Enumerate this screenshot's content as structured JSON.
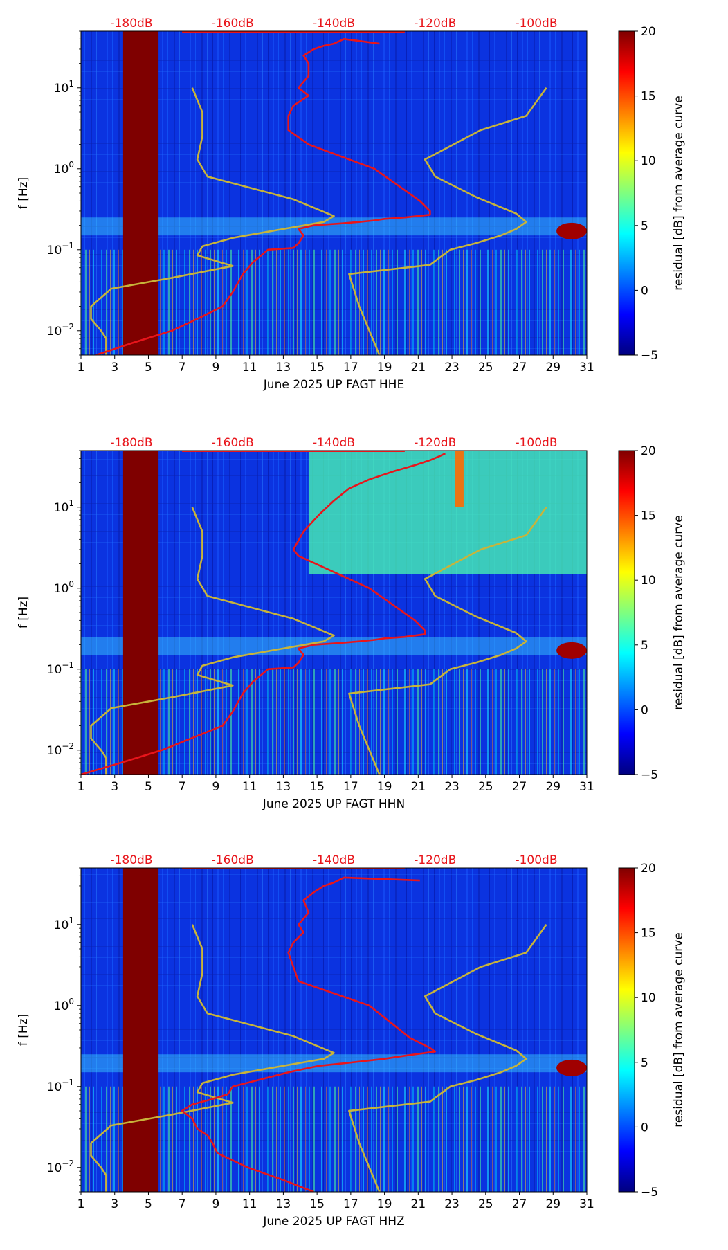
{
  "colormap_stops": [
    "#00007f",
    "#0000ff",
    "#007fff",
    "#00ffff",
    "#7fff7f",
    "#ffff00",
    "#ff7f00",
    "#ff0000",
    "#7f0000"
  ],
  "overlay_colors": {
    "psd_curve": "#e8151b",
    "noise_model": "#c8b43a",
    "top_label": "#e8151b",
    "gap": "#7f0000"
  },
  "chart_data": [
    {
      "type": "heatmap",
      "title": "",
      "xlabel": "June 2025 UP FAGT  HHE",
      "ylabel": "f [Hz]",
      "xlim": [
        1,
        31
      ],
      "ylim": [
        0.005,
        50
      ],
      "yscale": "log",
      "x_ticks": [
        "1",
        "3",
        "5",
        "7",
        "9",
        "11",
        "13",
        "15",
        "17",
        "19",
        "21",
        "23",
        "25",
        "27",
        "29",
        "31"
      ],
      "y_ticks": [
        {
          "label": "10",
          "exp": "−2"
        },
        {
          "label": "10",
          "exp": "−1"
        },
        {
          "label": "10",
          "exp": "0"
        },
        {
          "label": "10",
          "exp": "1"
        }
      ],
      "top_ticks": [
        "-180dB",
        "-160dB",
        "-140dB",
        "-120dB",
        "-100dB"
      ],
      "colorbar": {
        "label": "residual [dB] from average curve",
        "range": [
          -5,
          20
        ],
        "ticks": [
          "−5",
          "0",
          "5",
          "10",
          "15",
          "20"
        ]
      },
      "data_gap_days": [
        3.5,
        5.6
      ],
      "psd_curve": {
        "db": [
          -187,
          -180,
          -172,
          -166,
          -162,
          -160,
          -158,
          -156,
          -153,
          -148,
          -147,
          -146,
          -147,
          -144,
          -139,
          -135,
          -132,
          -130,
          -126,
          -121,
          -121,
          -123,
          -132,
          -145,
          -149,
          -149,
          -148,
          -145,
          -147,
          -145,
          -145,
          -146,
          -144,
          -142,
          -140,
          -138,
          -131
        ],
        "freq": [
          0.005,
          0.007,
          0.01,
          0.015,
          0.02,
          0.03,
          0.05,
          0.07,
          0.1,
          0.105,
          0.12,
          0.15,
          0.18,
          0.2,
          0.21,
          0.22,
          0.23,
          0.24,
          0.25,
          0.27,
          0.3,
          0.4,
          1,
          2,
          3,
          4.5,
          6,
          8,
          10,
          14,
          20,
          25,
          30,
          33,
          35,
          40,
          35
        ]
      }
    },
    {
      "type": "heatmap",
      "title": "",
      "xlabel": "June 2025 UP FAGT  HHN",
      "ylabel": "f [Hz]",
      "xlim": [
        1,
        31
      ],
      "ylim": [
        0.005,
        50
      ],
      "yscale": "log",
      "x_ticks": [
        "1",
        "3",
        "5",
        "7",
        "9",
        "11",
        "13",
        "15",
        "17",
        "19",
        "21",
        "23",
        "25",
        "27",
        "29",
        "31"
      ],
      "y_ticks": [
        {
          "label": "10",
          "exp": "−2"
        },
        {
          "label": "10",
          "exp": "−1"
        },
        {
          "label": "10",
          "exp": "0"
        },
        {
          "label": "10",
          "exp": "1"
        }
      ],
      "top_ticks": [
        "-180dB",
        "-160dB",
        "-140dB",
        "-120dB",
        "-100dB"
      ],
      "colorbar": {
        "label": "residual [dB] from average curve",
        "range": [
          -5,
          20
        ],
        "ticks": [
          "−5",
          "0",
          "5",
          "10",
          "15",
          "20"
        ]
      },
      "data_gap_days": [
        3.5,
        5.6
      ],
      "psd_curve": {
        "db": [
          -190,
          -182,
          -174,
          -167,
          -162,
          -160,
          -158,
          -156,
          -153,
          -148,
          -147,
          -146,
          -147,
          -144,
          -139,
          -135,
          -132,
          -130,
          -126,
          -122,
          -122,
          -124,
          -133,
          -147,
          -148,
          -146,
          -143,
          -140,
          -137,
          -133,
          -128,
          -124,
          -121,
          -119,
          -118
        ],
        "freq": [
          0.005,
          0.007,
          0.01,
          0.015,
          0.02,
          0.03,
          0.05,
          0.07,
          0.1,
          0.105,
          0.12,
          0.15,
          0.18,
          0.2,
          0.21,
          0.22,
          0.23,
          0.24,
          0.25,
          0.27,
          0.3,
          0.4,
          1,
          2.5,
          3,
          5,
          8,
          12,
          17,
          22,
          28,
          33,
          38,
          43,
          46
        ]
      }
    },
    {
      "type": "heatmap",
      "title": "",
      "xlabel": "June 2025 UP FAGT  HHZ",
      "ylabel": "f [Hz]",
      "xlim": [
        1,
        31
      ],
      "ylim": [
        0.005,
        50
      ],
      "yscale": "log",
      "x_ticks": [
        "1",
        "3",
        "5",
        "7",
        "9",
        "11",
        "13",
        "15",
        "17",
        "19",
        "21",
        "23",
        "25",
        "27",
        "29",
        "31"
      ],
      "y_ticks": [
        {
          "label": "10",
          "exp": "−2"
        },
        {
          "label": "10",
          "exp": "−1"
        },
        {
          "label": "10",
          "exp": "0"
        },
        {
          "label": "10",
          "exp": "1"
        }
      ],
      "top_ticks": [
        "-180dB",
        "-160dB",
        "-140dB",
        "-120dB",
        "-100dB"
      ],
      "colorbar": {
        "label": "residual [dB] from average curve",
        "range": [
          -5,
          20
        ],
        "ticks": [
          "−5",
          "0",
          "5",
          "10",
          "15",
          "20"
        ]
      },
      "data_gap_days": [
        3.5,
        5.6
      ],
      "psd_curve": {
        "db": [
          -144,
          -150,
          -157,
          -163,
          -164,
          -165,
          -167,
          -168,
          -170,
          -168,
          -164,
          -161,
          -160,
          -155,
          -149,
          -143,
          -136,
          -130,
          -126,
          -120,
          -121,
          -125,
          -133,
          -147,
          -148,
          -149,
          -148,
          -146,
          -147,
          -145,
          -146,
          -144,
          -142,
          -140,
          -138,
          -123
        ],
        "freq": [
          0.005,
          0.007,
          0.01,
          0.015,
          0.02,
          0.025,
          0.03,
          0.04,
          0.05,
          0.06,
          0.07,
          0.08,
          0.1,
          0.12,
          0.15,
          0.18,
          0.2,
          0.22,
          0.24,
          0.27,
          0.3,
          0.4,
          1,
          2,
          3,
          4.5,
          6,
          8,
          10,
          14,
          20,
          25,
          30,
          33,
          38,
          35
        ]
      }
    }
  ],
  "noise_models": {
    "db_scale": "top axis",
    "low": {
      "freq": [
        0.005,
        0.008,
        0.01,
        0.014,
        0.02,
        0.033,
        0.045,
        0.063,
        0.085,
        0.11,
        0.14,
        0.18,
        0.22,
        0.26,
        0.42,
        0.8,
        1.3,
        2.5,
        5,
        10
      ],
      "db": [
        -185,
        -185,
        -186,
        -188,
        -188,
        -184,
        -172,
        -160,
        -167,
        -166,
        -160,
        -150,
        -142,
        -140,
        -148,
        -165,
        -167,
        -166,
        -166,
        -168
      ]
    },
    "high": {
      "freq": [
        0.005,
        0.01,
        0.02,
        0.05,
        0.065,
        0.1,
        0.12,
        0.15,
        0.18,
        0.22,
        0.28,
        0.45,
        0.8,
        1.3,
        3,
        4.5,
        10
      ],
      "db": [
        -131,
        -133,
        -135,
        -137,
        -121,
        -117,
        -112,
        -107,
        -104,
        -102,
        -104,
        -112,
        -120,
        -122,
        -111,
        -102,
        -98
      ]
    }
  }
}
